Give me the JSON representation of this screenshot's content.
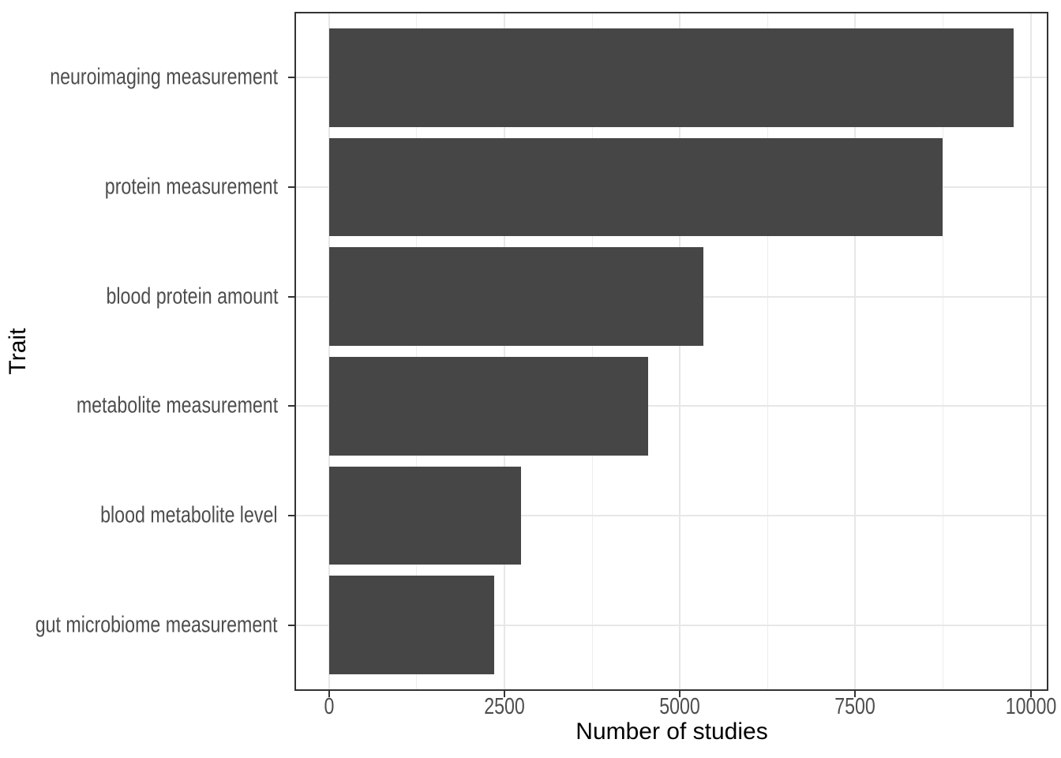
{
  "chart_data": {
    "type": "bar",
    "orientation": "horizontal",
    "title": "",
    "xlabel": "Number of studies",
    "ylabel": "Trait",
    "categories": [
      "neuroimaging measurement",
      "protein measurement",
      "blood protein amount",
      "metabolite measurement",
      "blood metabolite level",
      "gut microbiome measurement"
    ],
    "values": [
      9760,
      8740,
      5340,
      4550,
      2740,
      2360
    ],
    "x_ticks": [
      0,
      2500,
      5000,
      7500,
      10000
    ],
    "x_tick_labels": [
      "0",
      "2500",
      "5000",
      "7500",
      "10000"
    ],
    "x_minor_breaks": [
      1250,
      3750,
      6250,
      8750
    ],
    "xlim": [
      -490,
      10250
    ],
    "grid": "vertical major+minor, horizontal major at category centers",
    "legend": "none",
    "colors": {
      "bar": "#464646",
      "grid_major": "#e7e7e7",
      "grid_minor": "#ededed",
      "panel_border": "#333333",
      "tick_mark": "#333333",
      "axis_text": "#4d4d4d",
      "axis_title": "#000000",
      "background": "#ffffff"
    }
  }
}
